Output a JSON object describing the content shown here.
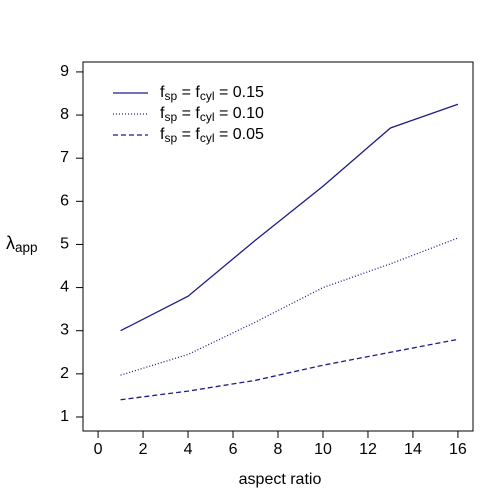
{
  "chart_data": {
    "type": "line",
    "x_label": "aspect ratio",
    "y_label": "λapp",
    "x": [
      1,
      4,
      7,
      10,
      13,
      16
    ],
    "series": [
      {
        "name": "fsp = fcyl = 0.15",
        "color": "#1c1c8a",
        "dash": "solid",
        "values": [
          3.0,
          3.8,
          5.1,
          6.35,
          7.7,
          8.25
        ]
      },
      {
        "name": "fsp = fcyl = 0.10",
        "color": "#1c1c8a",
        "dash": "dotted",
        "values": [
          1.97,
          2.45,
          3.2,
          4.0,
          4.55,
          5.15
        ]
      },
      {
        "name": "fsp = fcyl = 0.05",
        "color": "#1c1c8a",
        "dash": "dashed",
        "values": [
          1.4,
          1.6,
          1.85,
          2.2,
          2.5,
          2.8
        ]
      }
    ],
    "xlim": [
      -0.67,
      16.67
    ],
    "xticks": [
      0,
      2,
      4,
      6,
      8,
      10,
      12,
      14,
      16
    ],
    "ylim": [
      0.675,
      9.23
    ],
    "yticks": [
      1,
      2,
      3,
      4,
      5,
      6,
      7,
      8,
      9
    ],
    "legend": "top-left",
    "grid": false
  }
}
